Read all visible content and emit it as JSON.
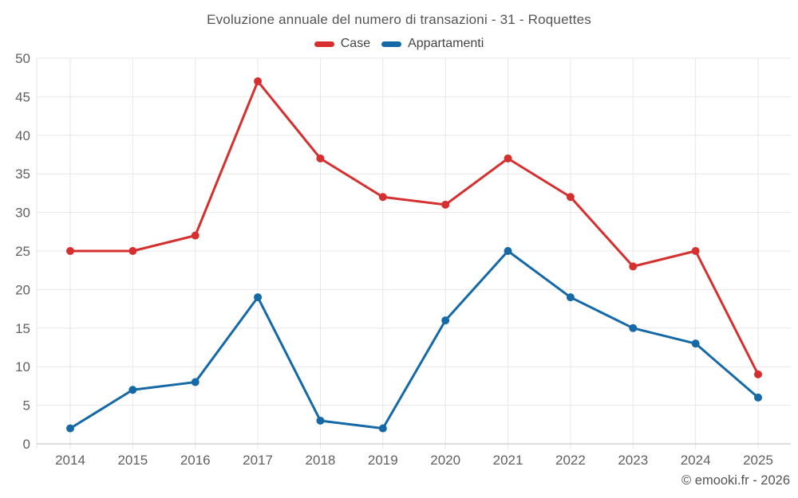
{
  "title": "Evoluzione annuale del numero di transazioni - 31 - Roquettes",
  "footer": "© emooki.fr - 2026",
  "chart_data": {
    "type": "line",
    "title": "Evoluzione annuale del numero di transazioni - 31 - Roquettes",
    "categories": [
      "2014",
      "2015",
      "2016",
      "2017",
      "2018",
      "2019",
      "2020",
      "2021",
      "2022",
      "2023",
      "2024",
      "2025"
    ],
    "series": [
      {
        "name": "Case",
        "color": "#d62f2f",
        "values": [
          25,
          25,
          27,
          47,
          37,
          32,
          31,
          37,
          32,
          23,
          25,
          9
        ]
      },
      {
        "name": "Appartamenti",
        "color": "#1569a7",
        "values": [
          2,
          7,
          8,
          19,
          3,
          2,
          16,
          25,
          19,
          15,
          13,
          6
        ]
      }
    ],
    "xlabel": "",
    "ylabel": "",
    "ylim": [
      0,
      50
    ],
    "ytick_step": 5,
    "yticks": [
      0,
      5,
      10,
      15,
      20,
      25,
      30,
      35,
      40,
      45,
      50
    ],
    "grid": true,
    "legend_position": "top",
    "colors": {
      "grid": "#e7e7e7",
      "axis": "#c9c9c9",
      "tick_label": "#616161",
      "title": "#545454"
    }
  }
}
